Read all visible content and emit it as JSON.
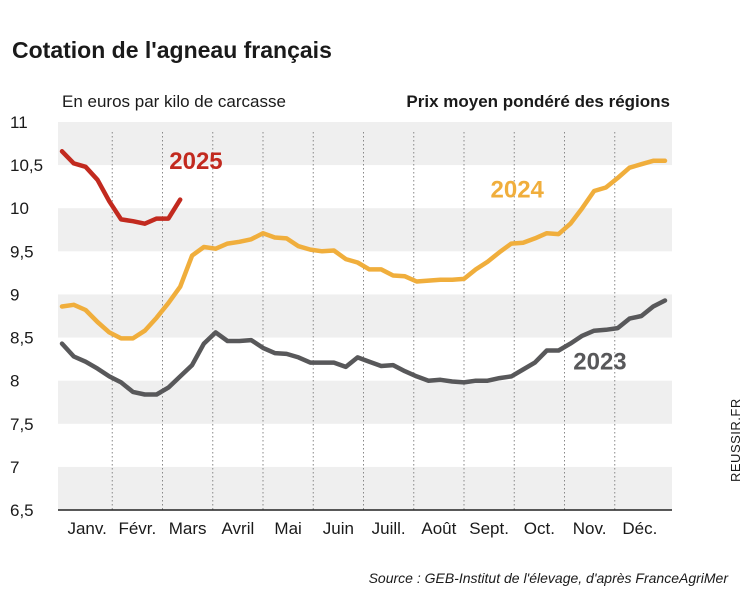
{
  "chart_data": {
    "type": "line",
    "title": "Cotation de l'agneau français",
    "subtitle_left": "En euros par kilo de carcasse",
    "subtitle_right": "Prix moyen pondéré des régions",
    "ylim": [
      6.5,
      11
    ],
    "yticks": [
      "11",
      "10,5",
      "10",
      "9,5",
      "9",
      "8,5",
      "8",
      "7,5",
      "7",
      "6,5"
    ],
    "ytick_values": [
      11,
      10.5,
      10,
      9.5,
      9,
      8.5,
      8,
      7.5,
      7,
      6.5
    ],
    "categories": [
      "Janv.",
      "Févr.",
      "Mars",
      "Avril",
      "Mai",
      "Juin",
      "Juill.",
      "Août",
      "Sept.",
      "Oct.",
      "Nov.",
      "Déc."
    ],
    "xlim": [
      1,
      52
    ],
    "series": [
      {
        "name": "2023",
        "color": "#58585a",
        "x": [
          1,
          2,
          3,
          4,
          5,
          6,
          7,
          8,
          9,
          10,
          11,
          12,
          13,
          14,
          15,
          16,
          17,
          18,
          19,
          20,
          21,
          22,
          23,
          24,
          25,
          26,
          27,
          28,
          29,
          30,
          31,
          32,
          33,
          34,
          35,
          36,
          37,
          38,
          39,
          40,
          41,
          42,
          43,
          44,
          45,
          46,
          47,
          48,
          49,
          50,
          51,
          52
        ],
        "values": [
          8.43,
          8.28,
          8.22,
          8.14,
          8.05,
          7.98,
          7.87,
          7.84,
          7.84,
          7.92,
          8.05,
          8.18,
          8.43,
          8.56,
          8.46,
          8.46,
          8.47,
          8.38,
          8.32,
          8.31,
          8.27,
          8.21,
          8.21,
          8.21,
          8.16,
          8.27,
          8.22,
          8.17,
          8.18,
          8.11,
          8.05,
          8.0,
          8.01,
          7.99,
          7.98,
          8.0,
          8.0,
          8.03,
          8.05,
          8.13,
          8.21,
          8.35,
          8.35,
          8.43,
          8.52,
          8.58,
          8.59,
          8.61,
          8.72,
          8.75,
          8.86,
          8.93
        ]
      },
      {
        "name": "2024",
        "color": "#f0ae3c",
        "x": [
          1,
          2,
          3,
          4,
          5,
          6,
          7,
          8,
          9,
          10,
          11,
          12,
          13,
          14,
          15,
          16,
          17,
          18,
          19,
          20,
          21,
          22,
          23,
          24,
          25,
          26,
          27,
          28,
          29,
          30,
          31,
          32,
          33,
          34,
          35,
          36,
          37,
          38,
          39,
          40,
          41,
          42,
          43,
          44,
          45,
          46,
          47,
          48,
          49,
          50,
          51,
          52
        ],
        "values": [
          8.86,
          8.88,
          8.82,
          8.68,
          8.56,
          8.49,
          8.49,
          8.58,
          8.73,
          8.9,
          9.09,
          9.45,
          9.55,
          9.53,
          9.59,
          9.61,
          9.64,
          9.71,
          9.66,
          9.65,
          9.56,
          9.52,
          9.5,
          9.51,
          9.41,
          9.37,
          9.29,
          9.29,
          9.22,
          9.21,
          9.15,
          9.16,
          9.17,
          9.17,
          9.18,
          9.29,
          9.38,
          9.49,
          9.59,
          9.6,
          9.65,
          9.71,
          9.7,
          9.82,
          10.0,
          10.2,
          10.24,
          10.35,
          10.47,
          10.51,
          10.55,
          10.55
        ]
      },
      {
        "name": "2025",
        "color": "#c22a1f",
        "x": [
          1,
          2,
          3,
          4,
          5,
          6,
          7,
          8,
          9,
          10,
          11
        ],
        "values": [
          10.66,
          10.52,
          10.48,
          10.33,
          10.08,
          9.87,
          9.85,
          9.82,
          9.88,
          9.88,
          10.1
        ]
      }
    ],
    "annotations": [
      {
        "text": "2025",
        "series": "2025"
      },
      {
        "text": "2024",
        "series": "2024"
      },
      {
        "text": "2023",
        "series": "2023"
      }
    ],
    "grid": "alternating horizontal bands, dotted vertical month separators"
  },
  "source": "Source : GEB-Institut de l'élevage, d'après FranceAgriMer",
  "credit": "REUSSIR.FR"
}
